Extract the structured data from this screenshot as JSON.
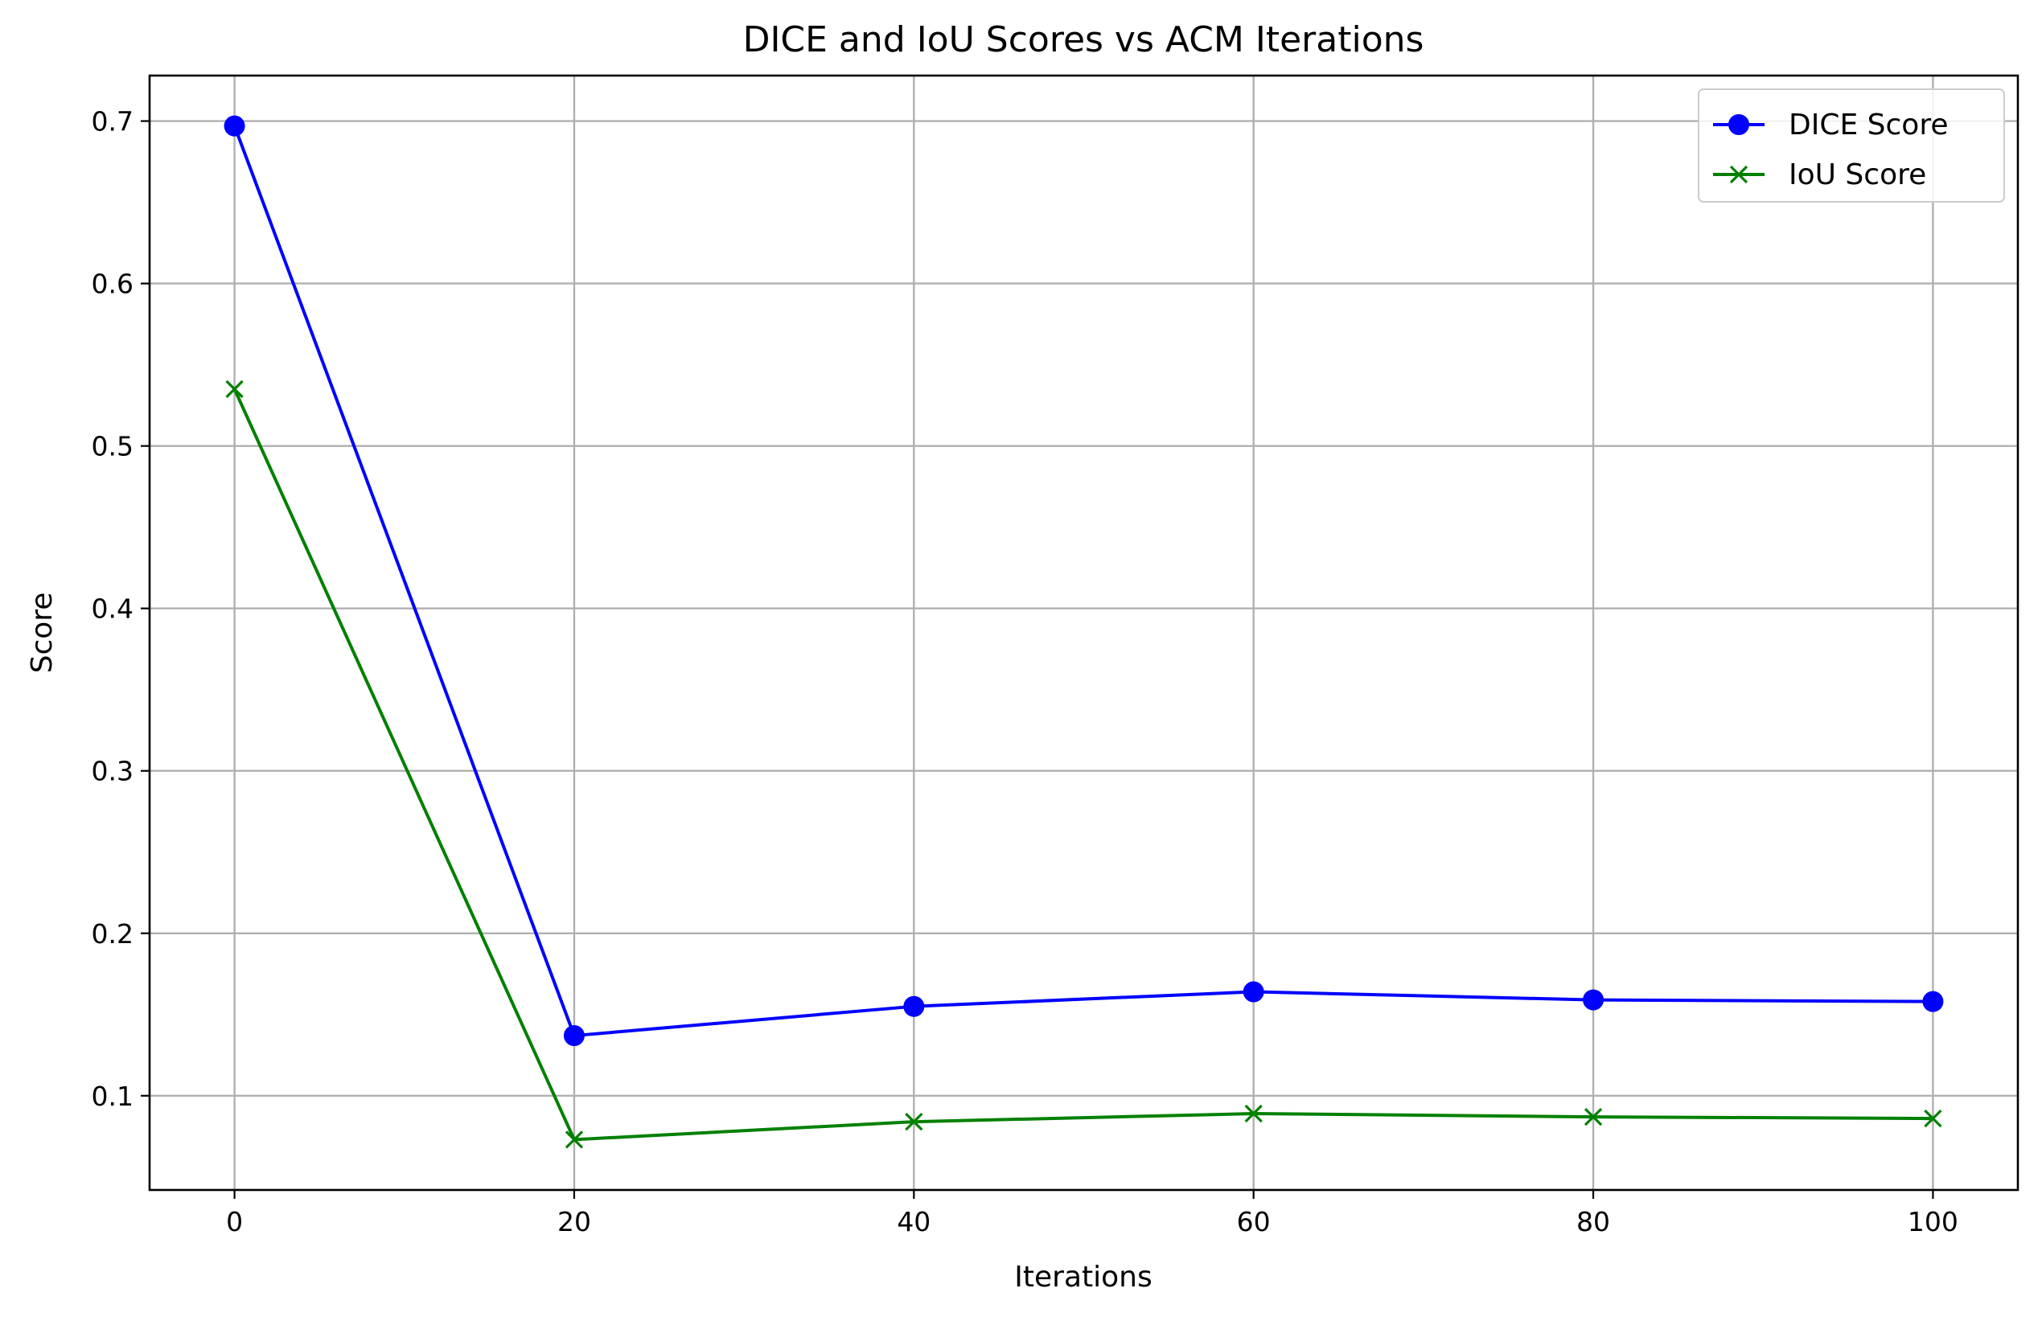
{
  "chart_data": {
    "type": "line",
    "title": "DICE and IoU Scores vs ACM Iterations",
    "xlabel": "Iterations",
    "ylabel": "Score",
    "x": [
      0,
      20,
      40,
      60,
      80,
      100
    ],
    "xlim": [
      -5,
      105
    ],
    "ylim": [
      0.042,
      0.728
    ],
    "xticks": [
      0,
      20,
      40,
      60,
      80,
      100
    ],
    "yticks": [
      0.1,
      0.2,
      0.3,
      0.4,
      0.5,
      0.6,
      0.7
    ],
    "grid": true,
    "legend_position": "top-right",
    "series": [
      {
        "name": "DICE Score",
        "color": "#0000ff",
        "marker": "circle",
        "values": [
          0.697,
          0.137,
          0.155,
          0.164,
          0.159,
          0.158
        ]
      },
      {
        "name": "IoU Score",
        "color": "#008000",
        "marker": "x",
        "values": [
          0.535,
          0.073,
          0.084,
          0.089,
          0.087,
          0.086
        ]
      }
    ]
  }
}
